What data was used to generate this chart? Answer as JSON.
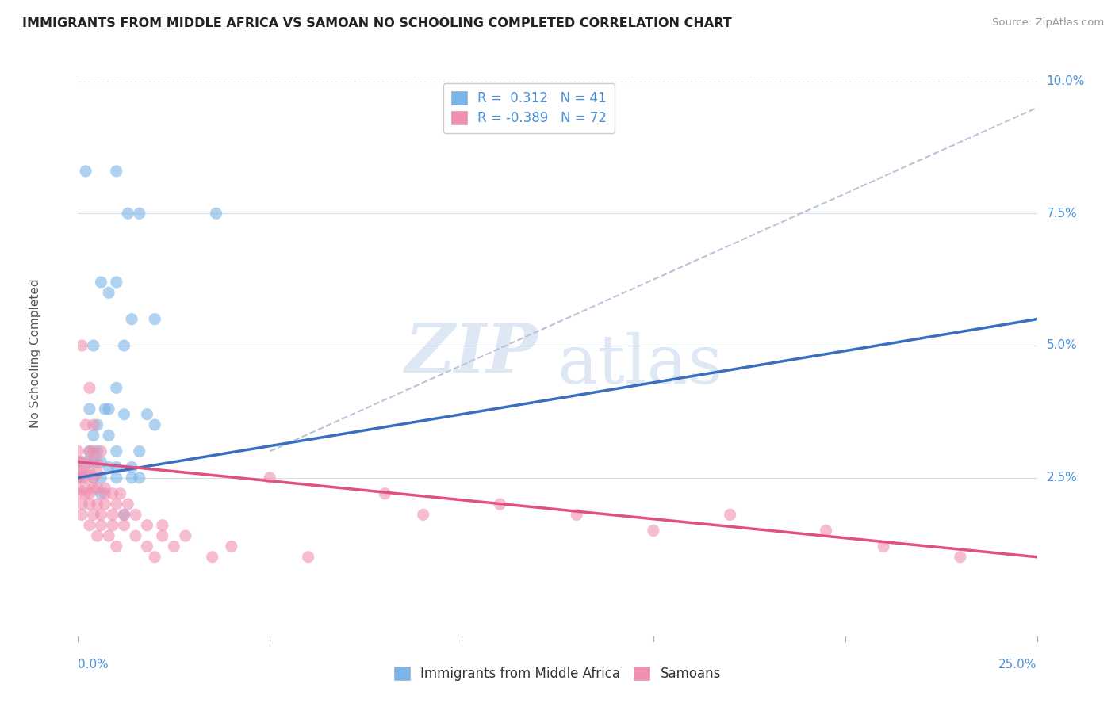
{
  "title": "IMMIGRANTS FROM MIDDLE AFRICA VS SAMOAN NO SCHOOLING COMPLETED CORRELATION CHART",
  "source": "Source: ZipAtlas.com",
  "ylabel": "No Schooling Completed",
  "xlim": [
    0.0,
    0.25
  ],
  "ylim": [
    -0.005,
    0.102
  ],
  "y_axis_min": 0.0,
  "y_axis_max": 0.1,
  "blue_color": "#7ab4e8",
  "blue_line_color": "#3a6fc0",
  "pink_color": "#f090b0",
  "pink_line_color": "#e05080",
  "gray_dashed_color": "#b8c4d8",
  "R_blue": 0.312,
  "N_blue": 41,
  "R_pink": -0.389,
  "N_pink": 72,
  "watermark_top": "ZIP",
  "watermark_bot": "atlas",
  "background_color": "#ffffff",
  "grid_color": "#d8dfe8",
  "legend_text_color": "#4a90d9",
  "ytick_color": "#4a90d9",
  "xtick_color": "#4a90d9",
  "blue_dots": [
    [
      0.002,
      0.083
    ],
    [
      0.01,
      0.083
    ],
    [
      0.013,
      0.075
    ],
    [
      0.016,
      0.075
    ],
    [
      0.036,
      0.075
    ],
    [
      0.006,
      0.062
    ],
    [
      0.008,
      0.06
    ],
    [
      0.01,
      0.062
    ],
    [
      0.014,
      0.055
    ],
    [
      0.02,
      0.055
    ],
    [
      0.004,
      0.05
    ],
    [
      0.012,
      0.05
    ],
    [
      0.01,
      0.042
    ],
    [
      0.003,
      0.038
    ],
    [
      0.007,
      0.038
    ],
    [
      0.008,
      0.038
    ],
    [
      0.012,
      0.037
    ],
    [
      0.018,
      0.037
    ],
    [
      0.005,
      0.035
    ],
    [
      0.02,
      0.035
    ],
    [
      0.004,
      0.033
    ],
    [
      0.008,
      0.033
    ],
    [
      0.003,
      0.03
    ],
    [
      0.005,
      0.03
    ],
    [
      0.01,
      0.03
    ],
    [
      0.016,
      0.03
    ],
    [
      0.0,
      0.028
    ],
    [
      0.002,
      0.028
    ],
    [
      0.004,
      0.028
    ],
    [
      0.006,
      0.028
    ],
    [
      0.008,
      0.027
    ],
    [
      0.01,
      0.027
    ],
    [
      0.014,
      0.027
    ],
    [
      0.0,
      0.025
    ],
    [
      0.004,
      0.025
    ],
    [
      0.006,
      0.025
    ],
    [
      0.01,
      0.025
    ],
    [
      0.014,
      0.025
    ],
    [
      0.016,
      0.025
    ],
    [
      0.006,
      0.022
    ],
    [
      0.012,
      0.018
    ]
  ],
  "pink_dots": [
    [
      0.001,
      0.05
    ],
    [
      0.003,
      0.042
    ],
    [
      0.002,
      0.035
    ],
    [
      0.004,
      0.035
    ],
    [
      0.0,
      0.03
    ],
    [
      0.003,
      0.03
    ],
    [
      0.004,
      0.03
    ],
    [
      0.006,
      0.03
    ],
    [
      0.0,
      0.028
    ],
    [
      0.001,
      0.028
    ],
    [
      0.003,
      0.028
    ],
    [
      0.005,
      0.028
    ],
    [
      0.0,
      0.026
    ],
    [
      0.001,
      0.026
    ],
    [
      0.002,
      0.026
    ],
    [
      0.003,
      0.026
    ],
    [
      0.005,
      0.026
    ],
    [
      0.0,
      0.025
    ],
    [
      0.001,
      0.025
    ],
    [
      0.002,
      0.025
    ],
    [
      0.004,
      0.025
    ],
    [
      0.0,
      0.023
    ],
    [
      0.002,
      0.023
    ],
    [
      0.004,
      0.023
    ],
    [
      0.005,
      0.023
    ],
    [
      0.007,
      0.023
    ],
    [
      0.0,
      0.022
    ],
    [
      0.002,
      0.022
    ],
    [
      0.003,
      0.022
    ],
    [
      0.007,
      0.022
    ],
    [
      0.009,
      0.022
    ],
    [
      0.011,
      0.022
    ],
    [
      0.001,
      0.02
    ],
    [
      0.003,
      0.02
    ],
    [
      0.005,
      0.02
    ],
    [
      0.007,
      0.02
    ],
    [
      0.01,
      0.02
    ],
    [
      0.013,
      0.02
    ],
    [
      0.001,
      0.018
    ],
    [
      0.004,
      0.018
    ],
    [
      0.006,
      0.018
    ],
    [
      0.009,
      0.018
    ],
    [
      0.012,
      0.018
    ],
    [
      0.015,
      0.018
    ],
    [
      0.003,
      0.016
    ],
    [
      0.006,
      0.016
    ],
    [
      0.009,
      0.016
    ],
    [
      0.012,
      0.016
    ],
    [
      0.018,
      0.016
    ],
    [
      0.022,
      0.016
    ],
    [
      0.005,
      0.014
    ],
    [
      0.008,
      0.014
    ],
    [
      0.015,
      0.014
    ],
    [
      0.022,
      0.014
    ],
    [
      0.028,
      0.014
    ],
    [
      0.01,
      0.012
    ],
    [
      0.018,
      0.012
    ],
    [
      0.025,
      0.012
    ],
    [
      0.04,
      0.012
    ],
    [
      0.02,
      0.01
    ],
    [
      0.035,
      0.01
    ],
    [
      0.06,
      0.01
    ],
    [
      0.05,
      0.025
    ],
    [
      0.08,
      0.022
    ],
    [
      0.09,
      0.018
    ],
    [
      0.11,
      0.02
    ],
    [
      0.13,
      0.018
    ],
    [
      0.15,
      0.015
    ],
    [
      0.17,
      0.018
    ],
    [
      0.195,
      0.015
    ],
    [
      0.21,
      0.012
    ],
    [
      0.23,
      0.01
    ]
  ],
  "blue_line": [
    [
      0.0,
      0.025
    ],
    [
      0.25,
      0.055
    ]
  ],
  "pink_line": [
    [
      0.0,
      0.028
    ],
    [
      0.25,
      0.01
    ]
  ],
  "gray_line": [
    [
      0.05,
      0.03
    ],
    [
      0.25,
      0.095
    ]
  ]
}
